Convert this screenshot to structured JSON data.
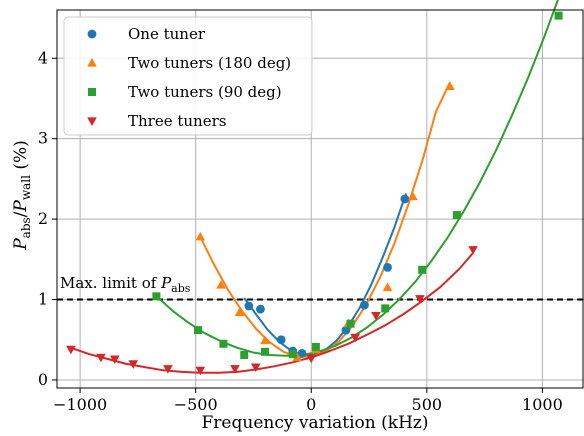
{
  "chart_data": {
    "type": "scatter",
    "xlabel": "Frequency variation (kHz)",
    "ylabel": "P_abs/P_wall (%)",
    "ylabel_parts": {
      "p1": "P",
      "sub1": "abs",
      "slash": "/",
      "p2": "P",
      "sub2": "wall",
      "unit": " (%)"
    },
    "xlim": [
      -1100,
      1180
    ],
    "ylim": [
      -0.1,
      4.6
    ],
    "x_ticks": [
      -1000,
      -500,
      0,
      500,
      1000
    ],
    "x_tick_labels": [
      "−1000",
      "−500",
      "0",
      "500",
      "1000"
    ],
    "y_ticks": [
      0,
      1,
      2,
      3,
      4
    ],
    "y_tick_labels": [
      "0",
      "1",
      "2",
      "3",
      "4"
    ],
    "grid": true,
    "legend_position": "top-left",
    "annotation": {
      "text_main": "Max. limit of ",
      "text_p": "P",
      "text_sub": "abs",
      "y": 1.0,
      "line_style": "dashed",
      "color": "#000000"
    },
    "series": [
      {
        "name": "One tuner",
        "marker": "circle",
        "color": "#1f77b4",
        "x": [
          -270,
          -220,
          -130,
          -80,
          -40,
          150,
          230,
          330,
          405
        ],
        "y": [
          0.92,
          0.88,
          0.5,
          0.36,
          0.33,
          0.62,
          0.93,
          1.4,
          2.25
        ],
        "fit_x": [
          -290,
          -240,
          -190,
          -140,
          -90,
          -40,
          10,
          60,
          110,
          160,
          210,
          260,
          310,
          360,
          410
        ],
        "fit_y": [
          1.02,
          0.82,
          0.63,
          0.48,
          0.37,
          0.31,
          0.31,
          0.37,
          0.49,
          0.67,
          0.9,
          1.19,
          1.53,
          1.9,
          2.32
        ]
      },
      {
        "name": "Two tuners (180 deg)",
        "marker": "triangle-up",
        "color": "#ff7f0e",
        "x": [
          -480,
          -390,
          -310,
          -200,
          -60,
          20,
          160,
          330,
          440,
          600
        ],
        "y": [
          1.78,
          1.18,
          0.84,
          0.49,
          0.28,
          0.38,
          0.7,
          1.15,
          2.28,
          3.65
        ],
        "fit_x": [
          -480,
          -420,
          -360,
          -300,
          -240,
          -180,
          -120,
          -60,
          0,
          60,
          120,
          180,
          240,
          300,
          360,
          420,
          480,
          540,
          600
        ],
        "fit_y": [
          1.78,
          1.43,
          1.12,
          0.86,
          0.64,
          0.47,
          0.35,
          0.29,
          0.29,
          0.35,
          0.48,
          0.68,
          0.95,
          1.29,
          1.7,
          2.18,
          2.72,
          3.34,
          3.7
        ]
      },
      {
        "name": "Two tuners (90 deg)",
        "marker": "square",
        "color": "#2ca02c",
        "x": [
          -670,
          -490,
          -380,
          -290,
          -200,
          -80,
          20,
          170,
          320,
          480,
          630,
          1070
        ],
        "y": [
          1.04,
          0.62,
          0.45,
          0.31,
          0.35,
          0.32,
          0.41,
          0.7,
          0.89,
          1.37,
          2.05,
          4.53
        ],
        "fit_x": [
          -670,
          -600,
          -530,
          -460,
          -390,
          -320,
          -250,
          -180,
          -110,
          -40,
          30,
          100,
          170,
          240,
          310,
          380,
          450,
          520,
          590,
          660,
          730,
          800,
          870,
          940,
          1010,
          1070
        ],
        "fit_y": [
          1.04,
          0.86,
          0.71,
          0.58,
          0.48,
          0.4,
          0.34,
          0.31,
          0.3,
          0.31,
          0.35,
          0.42,
          0.52,
          0.65,
          0.81,
          1.0,
          1.22,
          1.48,
          1.77,
          2.1,
          2.46,
          2.86,
          3.3,
          3.77,
          4.28,
          4.75
        ]
      },
      {
        "name": "Three tuners",
        "marker": "triangle-down",
        "color": "#d62728",
        "x": [
          -1040,
          -910,
          -850,
          -770,
          -620,
          -480,
          -330,
          -240,
          0,
          190,
          280,
          470,
          700
        ],
        "y": [
          0.38,
          0.28,
          0.26,
          0.2,
          0.14,
          0.12,
          0.14,
          0.16,
          0.27,
          0.53,
          0.8,
          1.01,
          1.62
        ],
        "fit_x": [
          -1040,
          -960,
          -880,
          -800,
          -720,
          -640,
          -560,
          -480,
          -400,
          -320,
          -240,
          -160,
          -80,
          0,
          80,
          160,
          240,
          320,
          400,
          480,
          560,
          640,
          700
        ],
        "fit_y": [
          0.4,
          0.32,
          0.26,
          0.2,
          0.16,
          0.12,
          0.1,
          0.09,
          0.09,
          0.1,
          0.13,
          0.17,
          0.22,
          0.28,
          0.36,
          0.45,
          0.56,
          0.68,
          0.82,
          0.98,
          1.16,
          1.38,
          1.58
        ]
      }
    ]
  }
}
